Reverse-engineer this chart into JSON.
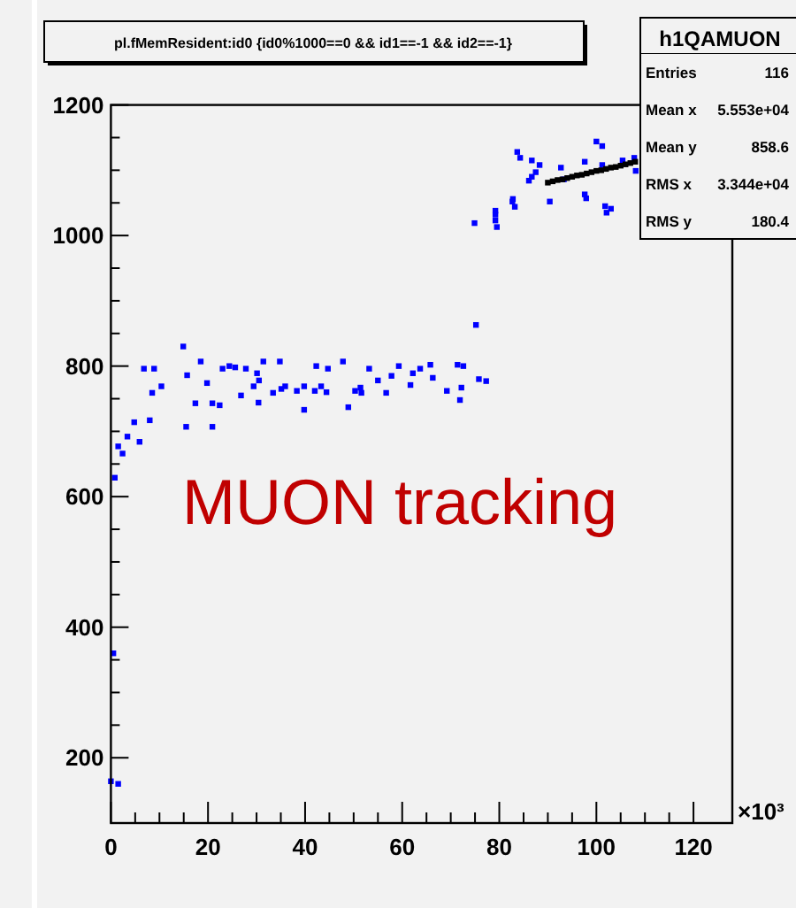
{
  "chart_data": {
    "type": "scatter",
    "title": "pl.fMemResident:id0 {id0%1000==0 && id1==-1 && id2==-1}",
    "xlabel": "×10³",
    "marker": "square",
    "grid": false,
    "xlim": [
      0,
      128
    ],
    "xticks": [
      0,
      20,
      40,
      60,
      80,
      100,
      120
    ],
    "ylim": [
      100,
      1200
    ],
    "yticks": [
      200,
      400,
      600,
      800,
      1000,
      1200
    ],
    "annotations": [
      "MUON tracking",
      "h1QAMUON",
      "Entries 116",
      "Mean x 5.553e+04",
      "Mean y 858.6",
      "RMS x 3.344e+04",
      "RMS y 180.4"
    ],
    "series": [
      {
        "color": "#0000ff",
        "x": [
          0,
          0.5,
          1.5,
          0.8,
          1.5,
          2.4,
          3.4,
          4.8,
          5.9,
          6.8,
          8,
          8.5,
          8.9,
          10.4,
          14.9,
          15.5,
          15.7,
          17.4,
          18.5,
          19.8,
          20.9,
          20.9,
          22.4,
          23,
          24.4,
          25.6,
          26.8,
          27.8,
          29.4,
          30.1,
          30.5,
          30.4,
          31.4,
          33.4,
          34.8,
          35.1,
          35.9,
          38.3,
          39.8,
          39.8,
          42,
          42.3,
          43.3,
          44.4,
          44.7,
          47.8,
          48.9,
          50.3,
          51.4,
          51.6,
          53.2,
          55,
          56.7,
          57.8,
          59.3,
          61.7,
          62.2,
          63.7,
          65.8,
          66.3,
          69.2,
          71.4,
          71.9,
          72.2,
          72.6,
          75.2,
          75.8,
          77.3,
          74.9,
          79.2,
          79.2,
          79.5,
          79.2,
          82.7,
          83.2,
          82.8,
          83.7,
          84.3,
          86.1,
          86.7,
          86.7,
          87.5,
          88.3,
          90.4,
          92.7,
          93.3,
          97.6,
          97.6,
          97.9,
          100,
          101.2,
          101.2,
          101.8,
          102.1,
          103,
          105.4,
          107.8,
          108.1
        ],
        "values": [
          164,
          360,
          160,
          629,
          677,
          666,
          692,
          714,
          684,
          796,
          717,
          759,
          796,
          769,
          830,
          707,
          786,
          743,
          807,
          774,
          707,
          743,
          740,
          796,
          800,
          798,
          755,
          796,
          769,
          789,
          778,
          744,
          807,
          759,
          807,
          765,
          769,
          762,
          769,
          733,
          762,
          800,
          769,
          760,
          796,
          807,
          737,
          762,
          767,
          759,
          796,
          778,
          759,
          785,
          800,
          771,
          789,
          796,
          802,
          782,
          762,
          802,
          748,
          767,
          800,
          863,
          780,
          777,
          1019,
          1023,
          1032,
          1013,
          1038,
          1052,
          1044,
          1056,
          1128,
          1119,
          1084,
          1115,
          1090,
          1097,
          1108,
          1052,
          1104,
          1086,
          1113,
          1063,
          1057,
          1144,
          1137,
          1108,
          1045,
          1035,
          1041,
          1115,
          1119,
          1099
        ]
      },
      {
        "color": "#000000",
        "x": [
          90,
          91,
          92,
          93,
          94,
          95,
          96,
          97,
          98,
          99,
          100,
          101,
          102,
          103,
          104,
          105,
          106,
          107,
          108
        ],
        "values": [
          1081,
          1083,
          1085,
          1086,
          1088,
          1090,
          1092,
          1093,
          1095,
          1097,
          1099,
          1100,
          1102,
          1104,
          1105,
          1107,
          1109,
          1111,
          1113
        ]
      }
    ]
  }
}
